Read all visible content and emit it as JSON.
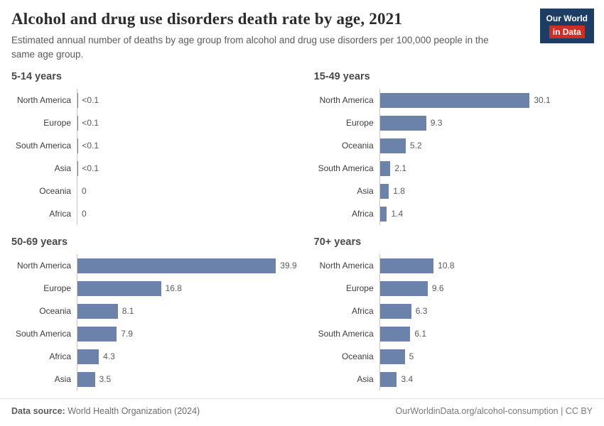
{
  "header": {
    "title": "Alcohol and drug use disorders death rate by age, 2021",
    "subtitle": "Estimated annual number of deaths by age group from alcohol and drug use disorders per 100,000 people in the same age group."
  },
  "logo": {
    "line1": "Our World",
    "line2": "in Data"
  },
  "colors": {
    "bar": "#6b82ab",
    "logo_navy": "#1d3d63",
    "logo_red": "#cf2e27"
  },
  "chart_data": [
    {
      "type": "bar",
      "title": "5-14 years",
      "orientation": "horizontal",
      "categories": [
        "North America",
        "Europe",
        "South America",
        "Asia",
        "Oceania",
        "Africa"
      ],
      "values": [
        0.05,
        0.05,
        0.05,
        0.05,
        0,
        0
      ],
      "value_labels": [
        "<0.1",
        "<0.1",
        "<0.1",
        "<0.1",
        "0",
        "0"
      ],
      "xlim": [
        0,
        40
      ],
      "grid": false,
      "legend": "none"
    },
    {
      "type": "bar",
      "title": "15-49 years",
      "orientation": "horizontal",
      "categories": [
        "North America",
        "Europe",
        "Oceania",
        "South America",
        "Asia",
        "Africa"
      ],
      "values": [
        30.1,
        9.3,
        5.2,
        2.1,
        1.8,
        1.4
      ],
      "value_labels": [
        "30.1",
        "9.3",
        "5.2",
        "2.1",
        "1.8",
        "1.4"
      ],
      "xlim": [
        0,
        40
      ],
      "grid": false,
      "legend": "none"
    },
    {
      "type": "bar",
      "title": "50-69 years",
      "orientation": "horizontal",
      "categories": [
        "North America",
        "Europe",
        "Oceania",
        "South America",
        "Africa",
        "Asia"
      ],
      "values": [
        39.9,
        16.8,
        8.1,
        7.9,
        4.3,
        3.5
      ],
      "value_labels": [
        "39.9",
        "16.8",
        "8.1",
        "7.9",
        "4.3",
        "3.5"
      ],
      "xlim": [
        0,
        40
      ],
      "grid": false,
      "legend": "none"
    },
    {
      "type": "bar",
      "title": "70+ years",
      "orientation": "horizontal",
      "categories": [
        "North America",
        "Europe",
        "Africa",
        "South America",
        "Oceania",
        "Asia"
      ],
      "values": [
        10.8,
        9.6,
        6.3,
        6.1,
        5,
        3.4
      ],
      "value_labels": [
        "10.8",
        "9.6",
        "6.3",
        "6.1",
        "5",
        "3.4"
      ],
      "xlim": [
        0,
        40
      ],
      "grid": false,
      "legend": "none"
    }
  ],
  "footer": {
    "source_label": "Data source:",
    "source_text": " World Health Organization (2024)",
    "right_text": "OurWorldinData.org/alcohol-consumption | CC BY"
  }
}
